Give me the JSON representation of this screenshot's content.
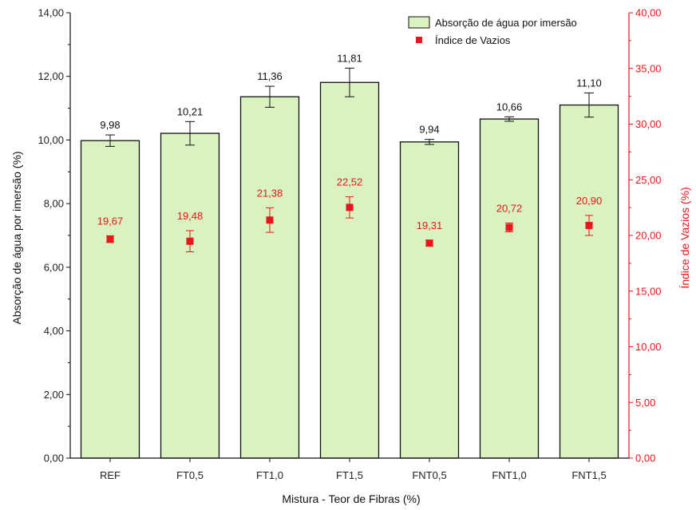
{
  "chart_data": {
    "type": "bar",
    "categories": [
      "REF",
      "FT0,5",
      "FT1,0",
      "FT1,5",
      "FNT0,5",
      "FNT1,0",
      "FNT1,5"
    ],
    "series": [
      {
        "name": "Absorção de água por imersão",
        "axis": "left",
        "kind": "bar",
        "values": [
          9.98,
          10.21,
          11.36,
          11.81,
          9.94,
          10.66,
          11.1
        ],
        "labels": [
          "9,98",
          "10,21",
          "11,36",
          "11,81",
          "9,94",
          "10,66",
          "11,10"
        ],
        "error": [
          0.18,
          0.37,
          0.33,
          0.45,
          0.08,
          0.07,
          0.38
        ],
        "color": "#d9f2c0",
        "stroke": "#111111"
      },
      {
        "name": "Índice de Vazios",
        "axis": "right",
        "kind": "scatter",
        "values": [
          19.67,
          19.48,
          21.38,
          22.52,
          19.31,
          20.72,
          20.9
        ],
        "labels": [
          "19,67",
          "19,48",
          "21,38",
          "22,52",
          "19,31",
          "20,72",
          "20,90"
        ],
        "error": [
          0.3,
          0.95,
          1.1,
          0.95,
          0.25,
          0.4,
          0.9
        ],
        "color": "#e8161b"
      }
    ],
    "xlabel": "Mistura - Teor de Fibras (%)",
    "ylabel": "Absorção de água por imersão (%)",
    "y2label": "Índice de Vazios (%)",
    "ylim": [
      0,
      14
    ],
    "y2lim": [
      0,
      40
    ],
    "yticks": [
      "0,00",
      "2,00",
      "4,00",
      "6,00",
      "8,00",
      "10,00",
      "12,00",
      "14,00"
    ],
    "y2ticks": [
      "0,00",
      "5,00",
      "10,00",
      "15,00",
      "20,00",
      "25,00",
      "30,00",
      "35,00",
      "40,00"
    ],
    "legend": "top-right",
    "grid": false,
    "right_axis_color": "#e8161b"
  }
}
